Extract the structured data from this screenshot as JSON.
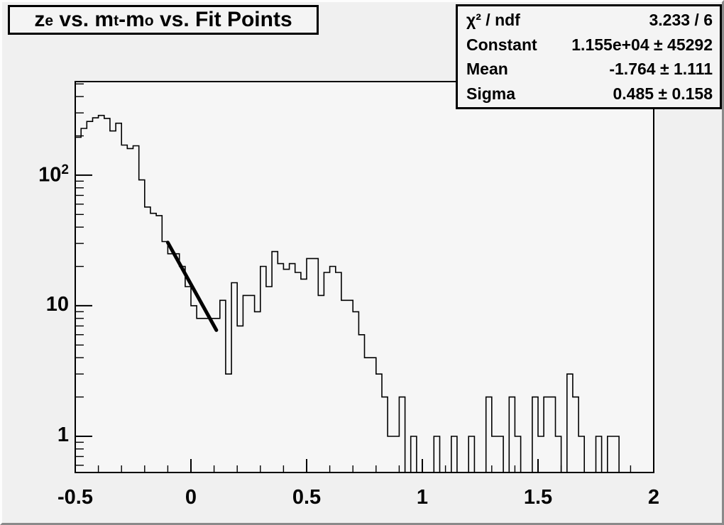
{
  "window": {
    "kind": "root-canvas-plot"
  },
  "title_box": {
    "text_plain": "z_e vs. m_t-m_o vs. Fit Points",
    "segments": [
      {
        "text": "z",
        "sub": false
      },
      {
        "text": "e",
        "sub": true
      },
      {
        "text": " vs. m",
        "sub": false
      },
      {
        "text": "t",
        "sub": true
      },
      {
        "text": "-m",
        "sub": false
      },
      {
        "text": "o",
        "sub": true
      },
      {
        "text": " vs. Fit Points",
        "sub": false
      }
    ]
  },
  "stats_box": {
    "rows": [
      {
        "label": "χ² / ndf",
        "value": "3.233 / 6"
      },
      {
        "label": "Constant",
        "value": "1.155e+04 ± 45292"
      },
      {
        "label": "Mean",
        "value": "-1.764 ± 1.111"
      },
      {
        "label": "Sigma",
        "value": "0.485 ± 0.158"
      }
    ]
  },
  "chart_data": {
    "type": "bar",
    "subtype": "step-histogram",
    "title": "z_e vs. m_t-m_o vs. Fit Points",
    "xlabel": "",
    "ylabel": "",
    "y_scale": "log",
    "grid": false,
    "x_range": [
      -0.5,
      2.0
    ],
    "y_range": [
      0.528,
      521.0
    ],
    "bin_start": -0.5,
    "bin_width": 0.025,
    "bins": [
      195,
      228,
      258,
      275,
      287,
      272,
      218,
      250,
      170,
      160,
      168,
      92,
      57,
      51,
      49,
      31,
      25,
      25,
      20,
      14,
      10,
      8,
      8,
      8,
      8,
      11,
      3,
      15,
      7,
      12,
      12,
      9,
      20,
      14,
      26,
      21,
      19,
      21,
      18,
      16,
      23,
      23,
      12,
      18,
      20,
      18,
      11,
      11,
      9,
      6,
      4,
      4,
      3,
      2,
      1,
      1,
      2,
      0,
      1,
      0,
      0,
      0,
      1,
      0,
      0,
      1,
      0,
      0,
      1,
      0,
      0,
      2,
      1,
      1,
      0,
      2,
      1,
      0,
      0,
      2,
      1,
      2,
      2,
      1,
      0,
      3,
      2,
      1,
      0,
      0,
      1,
      0,
      1,
      1,
      0,
      0,
      0,
      0,
      0,
      0
    ],
    "fit_line": {
      "x1": -0.1,
      "y1": 30.5,
      "x2": 0.11,
      "y2": 6.5
    },
    "x_ticks": {
      "major": [
        -0.5,
        0,
        0.5,
        1,
        1.5,
        2
      ],
      "labels": [
        "-0.5",
        "0",
        "0.5",
        "1",
        "1.5",
        "2"
      ],
      "minor_step": 0.1
    },
    "y_ticks": {
      "major": [
        1,
        10,
        100
      ],
      "labels": [
        {
          "value": 1,
          "base": "1",
          "exp": ""
        },
        {
          "value": 10,
          "base": "10",
          "exp": ""
        },
        {
          "value": 100,
          "base": "10",
          "exp": "2"
        }
      ]
    },
    "colors": {
      "canvas_bg": "#f0f0f0",
      "frame_bg": "#f6f6f6",
      "line": "#000000",
      "fit_line": "#000000",
      "text": "#000000"
    }
  }
}
